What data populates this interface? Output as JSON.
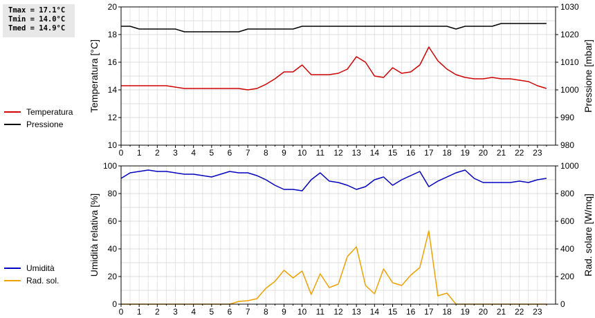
{
  "stats": {
    "tmax": "Tmax = 17.1°C",
    "tmin": "Tmin = 14.0°C",
    "tmed": "Tmed = 14.9°C"
  },
  "legend_top": [
    {
      "label": "Temperatura",
      "color": "#d00000"
    },
    {
      "label": "Pressione",
      "color": "#000000"
    }
  ],
  "legend_bottom": [
    {
      "label": "Umidità",
      "color": "#0000c0"
    },
    {
      "label": "Rad. sol.",
      "color": "#f0a000"
    }
  ],
  "chart_data": [
    {
      "type": "line",
      "xlim": [
        0,
        24
      ],
      "xticks": [
        0,
        1,
        2,
        3,
        4,
        5,
        6,
        7,
        8,
        9,
        10,
        11,
        12,
        13,
        14,
        15,
        16,
        17,
        18,
        19,
        20,
        21,
        22,
        23
      ],
      "ylabel": "Temperatura [°C]",
      "ylim": [
        10,
        20
      ],
      "yticks": [
        10,
        12,
        14,
        16,
        18,
        20
      ],
      "y2label": "Pressione [mbar]",
      "y2lim": [
        980,
        1030
      ],
      "y2ticks": [
        980,
        990,
        1000,
        1010,
        1020,
        1030
      ],
      "grid": true,
      "series": [
        {
          "name": "Temperatura",
          "axis": "left",
          "color": "#d00000",
          "x": [
            0,
            0.5,
            1,
            1.5,
            2,
            2.5,
            3,
            3.5,
            4,
            4.5,
            5,
            5.5,
            6,
            6.5,
            7,
            7.5,
            8,
            8.5,
            9,
            9.5,
            10,
            10.5,
            11,
            11.5,
            12,
            12.5,
            13,
            13.5,
            14,
            14.5,
            15,
            15.5,
            16,
            16.5,
            17,
            17.5,
            18,
            18.5,
            19,
            19.5,
            20,
            20.5,
            21,
            21.5,
            22,
            22.5,
            23,
            23.5
          ],
          "y": [
            14.3,
            14.3,
            14.3,
            14.3,
            14.3,
            14.3,
            14.2,
            14.1,
            14.1,
            14.1,
            14.1,
            14.1,
            14.1,
            14.1,
            14.0,
            14.1,
            14.4,
            14.8,
            15.3,
            15.3,
            15.8,
            15.1,
            15.1,
            15.1,
            15.2,
            15.5,
            16.4,
            16.0,
            15.0,
            14.9,
            15.6,
            15.2,
            15.3,
            15.8,
            17.1,
            16.1,
            15.5,
            15.1,
            14.9,
            14.8,
            14.8,
            14.9,
            14.8,
            14.8,
            14.7,
            14.6,
            14.3,
            14.1
          ]
        },
        {
          "name": "Pressione",
          "axis": "right",
          "color": "#000000",
          "x": [
            0,
            0.5,
            1,
            1.5,
            2,
            2.5,
            3,
            3.5,
            4,
            4.5,
            5,
            5.5,
            6,
            6.5,
            7,
            7.5,
            8,
            8.5,
            9,
            9.5,
            10,
            10.5,
            11,
            11.5,
            12,
            12.5,
            13,
            13.5,
            14,
            14.5,
            15,
            15.5,
            16,
            16.5,
            17,
            17.5,
            18,
            18.5,
            19,
            19.5,
            20,
            20.5,
            21,
            21.5,
            22,
            22.5,
            23,
            23.5
          ],
          "y": [
            1023,
            1023,
            1022,
            1022,
            1022,
            1022,
            1022,
            1021,
            1021,
            1021,
            1021,
            1021,
            1021,
            1021,
            1022,
            1022,
            1022,
            1022,
            1022,
            1022,
            1023,
            1023,
            1023,
            1023,
            1023,
            1023,
            1023,
            1023,
            1023,
            1023,
            1023,
            1023,
            1023,
            1023,
            1023,
            1023,
            1023,
            1022,
            1023,
            1023,
            1023,
            1023,
            1024,
            1024,
            1024,
            1024,
            1024,
            1024
          ]
        }
      ]
    },
    {
      "type": "line",
      "xlim": [
        0,
        24
      ],
      "xticks": [
        0,
        1,
        2,
        3,
        4,
        5,
        6,
        7,
        8,
        9,
        10,
        11,
        12,
        13,
        14,
        15,
        16,
        17,
        18,
        19,
        20,
        21,
        22,
        23
      ],
      "ylabel": "Umidità relativa [%]",
      "ylim": [
        0,
        100
      ],
      "yticks": [
        0,
        20,
        40,
        60,
        80,
        100
      ],
      "y2label": "Rad. solare [W/mq]",
      "y2lim": [
        0,
        1000
      ],
      "y2ticks": [
        0,
        200,
        400,
        600,
        800,
        1000
      ],
      "grid": true,
      "series": [
        {
          "name": "Umidità",
          "axis": "left",
          "color": "#0000c0",
          "x": [
            0,
            0.5,
            1,
            1.5,
            2,
            2.5,
            3,
            3.5,
            4,
            4.5,
            5,
            5.5,
            6,
            6.5,
            7,
            7.5,
            8,
            8.5,
            9,
            9.5,
            10,
            10.5,
            11,
            11.5,
            12,
            12.5,
            13,
            13.5,
            14,
            14.5,
            15,
            15.5,
            16,
            16.5,
            17,
            17.5,
            18,
            18.5,
            19,
            19.5,
            20,
            20.5,
            21,
            21.5,
            22,
            22.5,
            23,
            23.5
          ],
          "y": [
            91,
            95,
            96,
            97,
            96,
            96,
            95,
            94,
            94,
            93,
            92,
            94,
            96,
            95,
            95,
            93,
            90,
            86,
            83,
            83,
            82,
            90,
            95,
            89,
            88,
            86,
            83,
            85,
            90,
            92,
            86,
            90,
            93,
            96,
            85,
            89,
            92,
            95,
            97,
            91,
            88,
            88,
            88,
            88,
            89,
            88,
            90,
            91
          ]
        },
        {
          "name": "Rad. sol.",
          "axis": "right",
          "color": "#f0a000",
          "x": [
            0,
            0.5,
            1,
            1.5,
            2,
            2.5,
            3,
            3.5,
            4,
            4.5,
            5,
            5.5,
            6,
            6.5,
            7,
            7.5,
            8,
            8.5,
            9,
            9.5,
            10,
            10.5,
            11,
            11.5,
            12,
            12.5,
            13,
            13.5,
            14,
            14.5,
            15,
            15.5,
            16,
            16.5,
            17,
            17.5,
            18,
            18.5,
            19,
            19.5,
            20,
            20.5,
            21,
            21.5,
            22,
            22.5,
            23,
            23.5
          ],
          "y": [
            0,
            0,
            0,
            0,
            0,
            0,
            0,
            0,
            0,
            0,
            0,
            0,
            0,
            20,
            25,
            40,
            115,
            165,
            245,
            190,
            240,
            70,
            220,
            120,
            145,
            345,
            415,
            135,
            75,
            255,
            155,
            135,
            210,
            265,
            530,
            60,
            80,
            0,
            0,
            0,
            0,
            0,
            0,
            0,
            0,
            0,
            0,
            0
          ]
        }
      ]
    }
  ]
}
